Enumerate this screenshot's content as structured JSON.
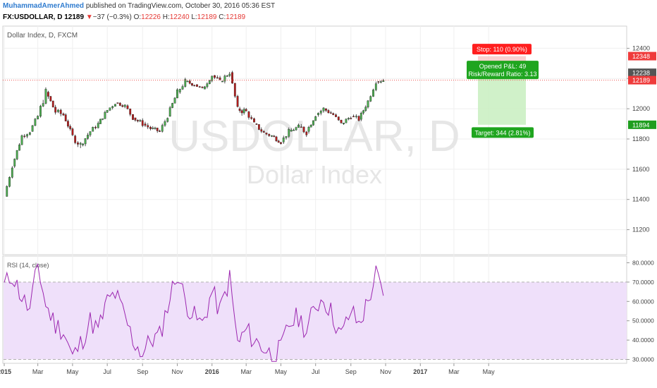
{
  "header": {
    "author": "MuhammadAmerAhmed",
    "published": "published on TradingView.com, October 30, 2016 05:36 EST",
    "symbol": "FX:USDOLLAR",
    "interval": "D",
    "last": "12189",
    "change_arrow": "▼",
    "change": "−37 (−0.3%)",
    "open_label": "O:",
    "open": "12226",
    "high_label": "H:",
    "high": "12240",
    "low_label": "L:",
    "low": "12189",
    "close_label": "C:",
    "close": "12189"
  },
  "watermark": {
    "symbol": "USDOLLAR, D",
    "name": "Dollar Index"
  },
  "colors": {
    "up": "#26a69a",
    "down": "#ef5350",
    "candle_up_body": "#4caf50",
    "candle_down_body": "#b71c1c",
    "rsi_line": "#9c27b0",
    "rsi_band": "#efe0fa",
    "stop_zone": "#f8c4c4",
    "target_zone": "#c8efc0",
    "stop_label": "#ff1f1f",
    "target_label": "#1fa51f",
    "price_line": "#ef5350"
  },
  "chart_data": [
    {
      "type": "candlestick",
      "title": "Dollar Index, D, FXCM",
      "xlabel": "",
      "ylabel": "",
      "x_ticks": [
        "2015",
        "Mar",
        "May",
        "Jul",
        "Sep",
        "Nov",
        "2016",
        "Mar",
        "May",
        "Jul",
        "Sep",
        "Nov",
        "2017",
        "Mar",
        "May"
      ],
      "ylim": [
        11100,
        12500
      ],
      "y_ticks": [
        11200,
        11400,
        11600,
        11800,
        12000,
        12200,
        12400
      ],
      "price_tags": [
        {
          "value": 12348,
          "label": "12348",
          "kind": "stop"
        },
        {
          "value": 12238,
          "label": "12238",
          "kind": "entry"
        },
        {
          "value": 12189,
          "label": "12189",
          "kind": "last"
        },
        {
          "value": 11894,
          "label": "11894",
          "kind": "target"
        }
      ],
      "series_x_dates": [
        "2015-01-01",
        "2015-01-15",
        "2015-02-01",
        "2015-02-15",
        "2015-03-01",
        "2015-03-15",
        "2015-04-01",
        "2015-04-15",
        "2015-05-01",
        "2015-05-15",
        "2015-06-01",
        "2015-06-15",
        "2015-07-01",
        "2015-07-15",
        "2015-08-01",
        "2015-08-15",
        "2015-09-01",
        "2015-09-15",
        "2015-10-01",
        "2015-10-15",
        "2015-11-01",
        "2015-11-15",
        "2015-12-01",
        "2015-12-15",
        "2016-01-01",
        "2016-01-15",
        "2016-02-01",
        "2016-02-15",
        "2016-03-01",
        "2016-03-15",
        "2016-04-01",
        "2016-04-15",
        "2016-05-01",
        "2016-05-15",
        "2016-06-01",
        "2016-06-15",
        "2016-07-01",
        "2016-07-15",
        "2016-08-01",
        "2016-08-15",
        "2016-09-01",
        "2016-09-15",
        "2016-10-01",
        "2016-10-15",
        "2016-10-28"
      ],
      "series_close": [
        11420,
        11620,
        11820,
        11850,
        11950,
        12110,
        11980,
        11960,
        11820,
        11760,
        11850,
        11900,
        11990,
        12040,
        12020,
        11940,
        11900,
        11870,
        11850,
        11950,
        12110,
        12180,
        12160,
        12130,
        12220,
        12180,
        12240,
        12000,
        11980,
        11900,
        11840,
        11820,
        11780,
        11850,
        11880,
        11850,
        11960,
        12000,
        11960,
        11900,
        11950,
        11930,
        12050,
        12180,
        12189
      ],
      "series_high": [
        11500,
        11700,
        11880,
        11920,
        12120,
        12160,
        12080,
        12000,
        11900,
        11820,
        11910,
        11960,
        12060,
        12080,
        12070,
        12000,
        11960,
        11920,
        11920,
        12040,
        12200,
        12230,
        12200,
        12190,
        12290,
        12260,
        12310,
        12150,
        12040,
        11960,
        11900,
        11880,
        11830,
        11920,
        11960,
        11920,
        12030,
        12050,
        12010,
        11970,
        12020,
        12000,
        12120,
        12240,
        12240
      ],
      "series_low": [
        11380,
        11560,
        11760,
        11780,
        11890,
        11960,
        11900,
        11880,
        11660,
        11680,
        11780,
        11840,
        11930,
        11980,
        11940,
        11860,
        11820,
        11800,
        11790,
        11880,
        12040,
        12120,
        12100,
        12070,
        12150,
        12120,
        12170,
        11940,
        11900,
        11830,
        11770,
        11760,
        11700,
        11790,
        11720,
        11780,
        11890,
        11930,
        11900,
        11840,
        11880,
        11870,
        11990,
        12120,
        12160
      ],
      "position": {
        "stop_label": "Stop: 110 (0.90%)",
        "pnl_label": "Opened P&L: 49",
        "ratio_label": "Risk/Reward Ratio: 3.13",
        "target_label": "Target: 344 (2.81%)",
        "entry": 12238,
        "stop": 12348,
        "target": 11894
      }
    },
    {
      "type": "line",
      "title": "RSI (14, close)",
      "ylim": [
        28,
        82
      ],
      "y_ticks": [
        "30.0000",
        "40.0000",
        "50.0000",
        "60.0000",
        "70.0000",
        "80.0000"
      ],
      "band": [
        30,
        70
      ],
      "series_x_dates": [
        "2015-01-01",
        "2015-01-15",
        "2015-02-01",
        "2015-02-15",
        "2015-03-01",
        "2015-03-15",
        "2015-04-01",
        "2015-04-15",
        "2015-05-01",
        "2015-05-15",
        "2015-06-01",
        "2015-06-15",
        "2015-07-01",
        "2015-07-15",
        "2015-08-01",
        "2015-08-15",
        "2015-09-01",
        "2015-09-15",
        "2015-10-01",
        "2015-10-15",
        "2015-11-01",
        "2015-11-15",
        "2015-12-01",
        "2015-12-15",
        "2016-01-01",
        "2016-01-15",
        "2016-02-01",
        "2016-02-15",
        "2016-03-01",
        "2016-03-15",
        "2016-04-01",
        "2016-04-15",
        "2016-05-01",
        "2016-05-15",
        "2016-06-01",
        "2016-06-15",
        "2016-07-01",
        "2016-07-15",
        "2016-08-01",
        "2016-08-15",
        "2016-09-01",
        "2016-09-15",
        "2016-10-01",
        "2016-10-15",
        "2016-10-28"
      ],
      "series_values": [
        68,
        74,
        62,
        55,
        79,
        58,
        48,
        45,
        31,
        38,
        50,
        45,
        60,
        64,
        52,
        40,
        33,
        40,
        42,
        58,
        75,
        60,
        52,
        48,
        65,
        55,
        72,
        38,
        45,
        40,
        36,
        32,
        35,
        48,
        52,
        45,
        58,
        62,
        52,
        42,
        55,
        48,
        60,
        74,
        63
      ]
    }
  ]
}
